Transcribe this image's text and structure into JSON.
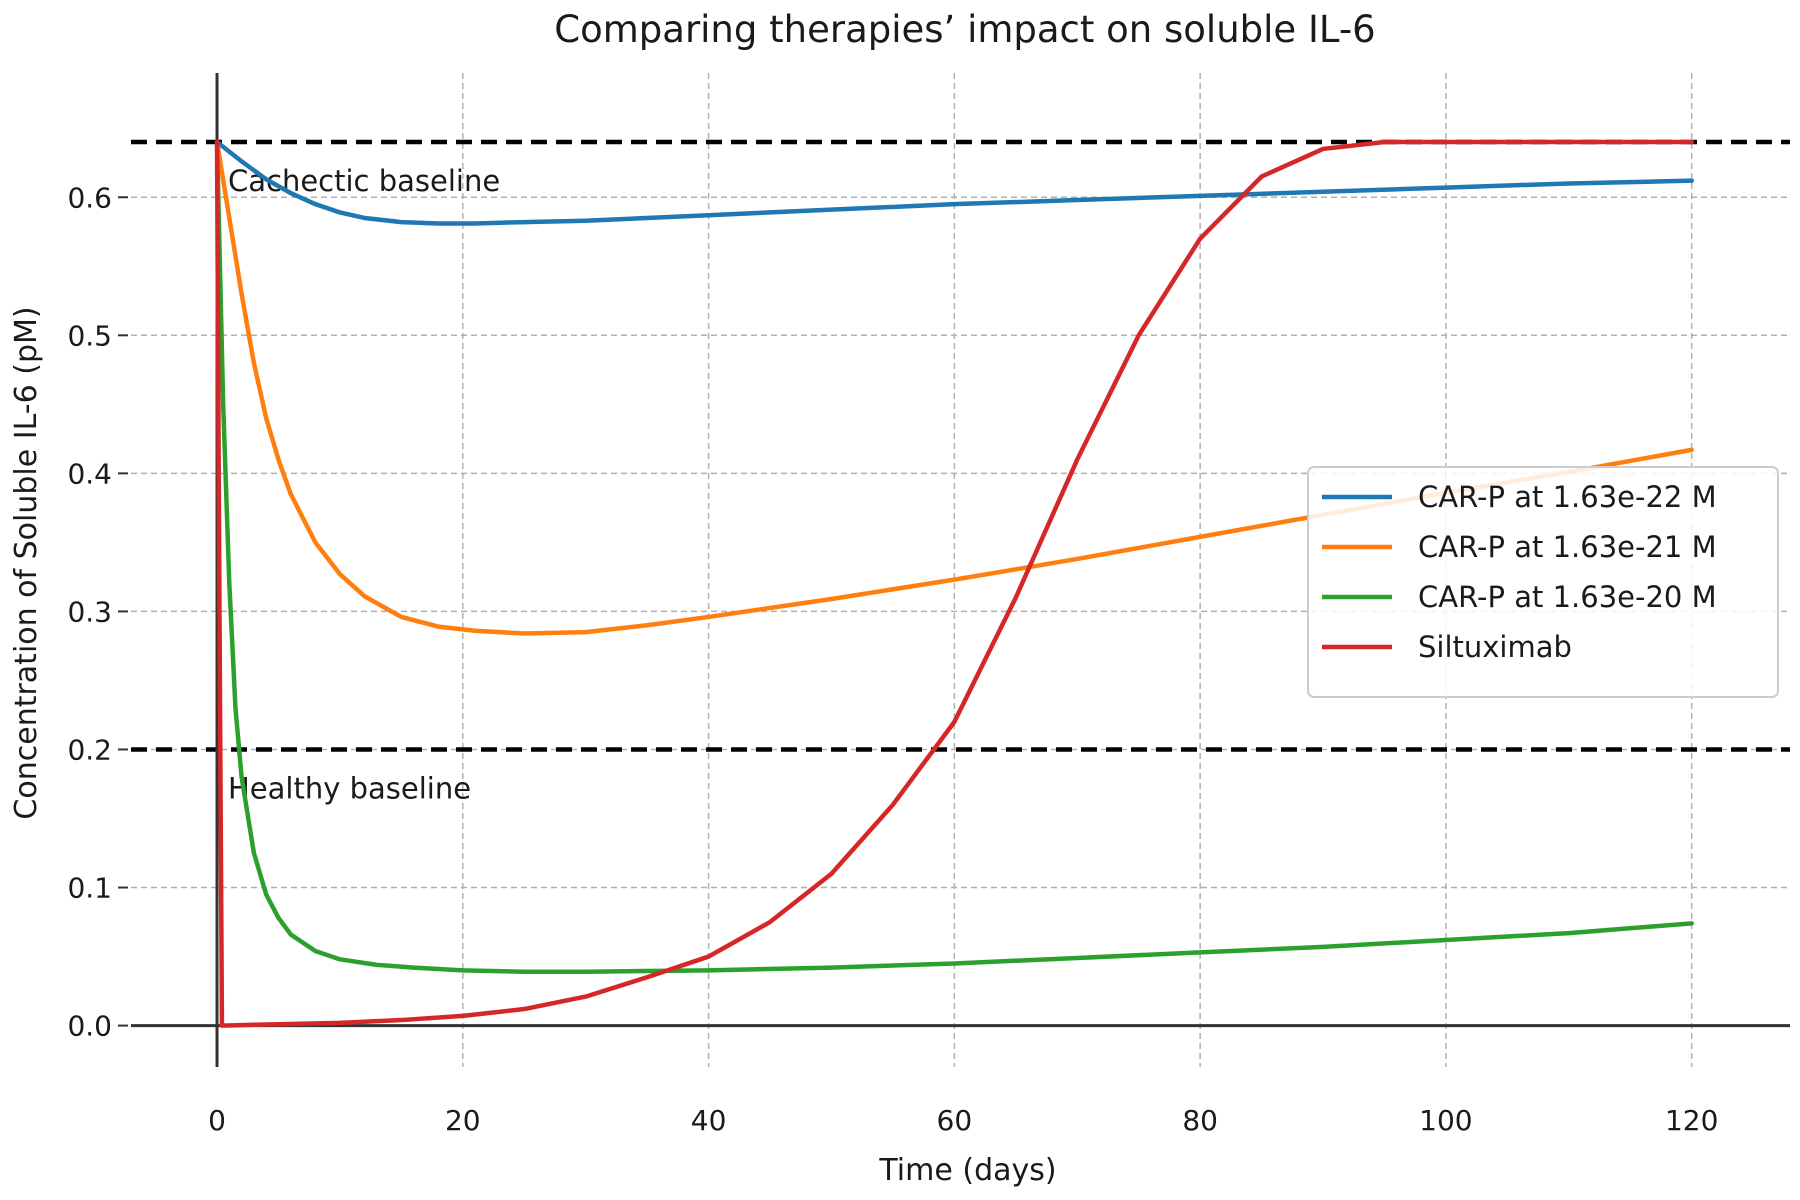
{
  "chart_data": {
    "type": "line",
    "title": "Comparing therapies’ impact on soluble IL-6",
    "xlabel": "Time (days)",
    "ylabel": "Concentration of Soluble IL-6 (pM)",
    "xlim": [
      -7,
      128
    ],
    "ylim": [
      -0.03,
      0.69
    ],
    "xticks": [
      0,
      20,
      40,
      60,
      80,
      100,
      120
    ],
    "yticks": [
      0.0,
      0.1,
      0.2,
      0.3,
      0.4,
      0.5,
      0.6
    ],
    "xtick_labels": [
      "0",
      "20",
      "40",
      "60",
      "80",
      "100",
      "120"
    ],
    "ytick_labels": [
      "0.0",
      "0.1",
      "0.2",
      "0.3",
      "0.4",
      "0.5",
      "0.6"
    ],
    "grid": true,
    "legend_position": "center-right",
    "hlines": [
      {
        "y": 0.64,
        "label": "Cachectic baseline",
        "color": "#000000"
      },
      {
        "y": 0.2,
        "label": "Healthy baseline",
        "color": "#000000"
      }
    ],
    "series": [
      {
        "name": "CAR-P at 1.63e-22 M",
        "color": "#1f77b4",
        "x": [
          0,
          2,
          4,
          6,
          8,
          10,
          12,
          15,
          18,
          21,
          25,
          30,
          40,
          50,
          60,
          70,
          80,
          90,
          100,
          110,
          120
        ],
        "y": [
          0.64,
          0.626,
          0.613,
          0.603,
          0.595,
          0.589,
          0.585,
          0.582,
          0.581,
          0.581,
          0.582,
          0.583,
          0.587,
          0.591,
          0.595,
          0.598,
          0.601,
          0.604,
          0.607,
          0.61,
          0.612
        ]
      },
      {
        "name": "CAR-P at 1.63e-21 M",
        "color": "#ff7f0e",
        "x": [
          0,
          1,
          2,
          3,
          4,
          5,
          6,
          8,
          10,
          12,
          15,
          18,
          21,
          25,
          30,
          35,
          40,
          50,
          60,
          70,
          80,
          90,
          100,
          110,
          120
        ],
        "y": [
          0.64,
          0.585,
          0.53,
          0.48,
          0.44,
          0.41,
          0.385,
          0.35,
          0.327,
          0.311,
          0.296,
          0.289,
          0.286,
          0.284,
          0.285,
          0.29,
          0.296,
          0.309,
          0.323,
          0.338,
          0.354,
          0.37,
          0.386,
          0.401,
          0.417
        ]
      },
      {
        "name": "CAR-P at 1.63e-20 M",
        "color": "#2ca02c",
        "x": [
          0,
          0.5,
          1,
          1.5,
          2,
          3,
          4,
          5,
          6,
          8,
          10,
          13,
          16,
          20,
          25,
          30,
          40,
          50,
          60,
          70,
          80,
          90,
          100,
          110,
          120
        ],
        "y": [
          0.64,
          0.45,
          0.32,
          0.23,
          0.18,
          0.125,
          0.095,
          0.078,
          0.066,
          0.054,
          0.048,
          0.044,
          0.042,
          0.04,
          0.039,
          0.039,
          0.04,
          0.042,
          0.045,
          0.049,
          0.053,
          0.057,
          0.062,
          0.067,
          0.074
        ]
      },
      {
        "name": "Siltuximab",
        "color": "#d62728",
        "x": [
          0,
          0.2,
          0.4,
          5,
          10,
          15,
          20,
          25,
          30,
          35,
          40,
          45,
          50,
          55,
          60,
          65,
          70,
          75,
          80,
          85,
          90,
          95,
          100,
          110,
          120
        ],
        "y": [
          0.64,
          0.3,
          0.0,
          0.001,
          0.002,
          0.004,
          0.007,
          0.012,
          0.021,
          0.035,
          0.05,
          0.075,
          0.11,
          0.16,
          0.22,
          0.31,
          0.41,
          0.5,
          0.57,
          0.615,
          0.635,
          0.64,
          0.64,
          0.64,
          0.64
        ]
      }
    ]
  }
}
